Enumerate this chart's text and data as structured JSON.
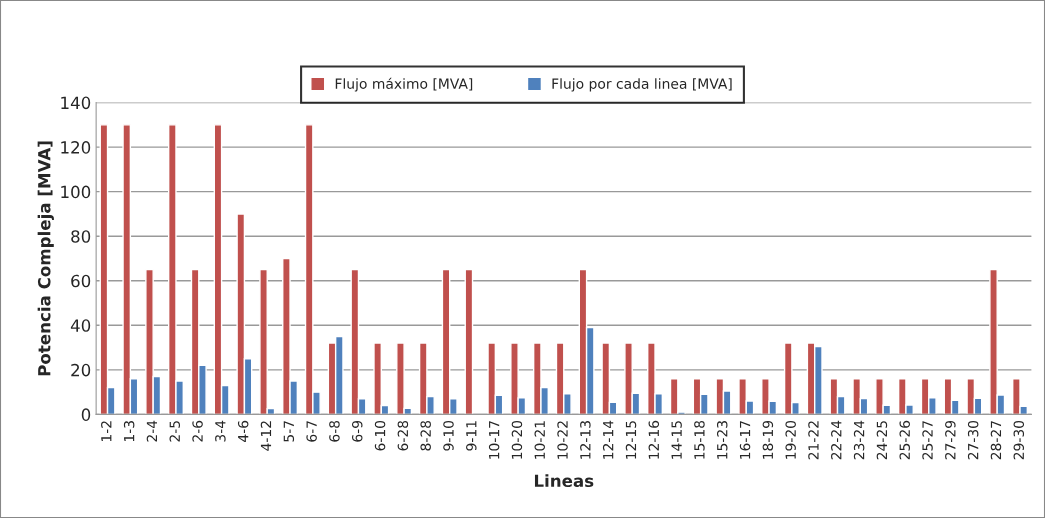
{
  "chart_data": {
    "type": "bar",
    "xlabel": "Lineas",
    "ylabel": "Potencia Compleja [MVA]",
    "categories": [
      "1-2",
      "1-3",
      "2-4",
      "2-5",
      "2-6",
      "3-4",
      "4-6",
      "4-12",
      "5-7",
      "6-7",
      "6-8",
      "6-9",
      "6-10",
      "6-28",
      "8-28",
      "9-10",
      "9-11",
      "10-17",
      "10-20",
      "10-21",
      "10-22",
      "12-13",
      "12-14",
      "12-15",
      "12-16",
      "14-15",
      "15-18",
      "15-23",
      "16-17",
      "18-19",
      "19-20",
      "21-22",
      "22-24",
      "23-24",
      "24-25",
      "25-26",
      "25-27",
      "27-29",
      "27-30",
      "28-27",
      "29-30"
    ],
    "series": [
      {
        "name": "Flujo máximo [MVA]",
        "color": "#c0504d",
        "values": [
          130,
          130,
          65,
          130,
          65,
          130,
          90,
          65,
          70,
          130,
          32,
          65,
          32,
          32,
          32,
          65,
          65,
          32,
          32,
          32,
          32,
          65,
          32,
          32,
          32,
          16,
          16,
          16,
          16,
          16,
          32,
          32,
          16,
          16,
          16,
          16,
          16,
          16,
          16,
          65,
          16
        ]
      },
      {
        "name": "Flujo por cada linea [MVA]",
        "color": "#4f81bd",
        "values": [
          12,
          16,
          17,
          15,
          22,
          13,
          25,
          2.6,
          15,
          10,
          35,
          7,
          4,
          2.7,
          8,
          7,
          null,
          8.6,
          7.4,
          12,
          9.3,
          39,
          5.4,
          9.5,
          9.2,
          1,
          9,
          10.5,
          6,
          5.9,
          5.3,
          30.5,
          8,
          7.1,
          4.1,
          4.2,
          7.4,
          6.3,
          7.2,
          8.7,
          3.6
        ]
      }
    ],
    "ylim": [
      0,
      140
    ],
    "yticks": [
      0,
      20,
      40,
      60,
      80,
      100,
      120,
      140
    ],
    "grid": "y",
    "legend": "top"
  }
}
